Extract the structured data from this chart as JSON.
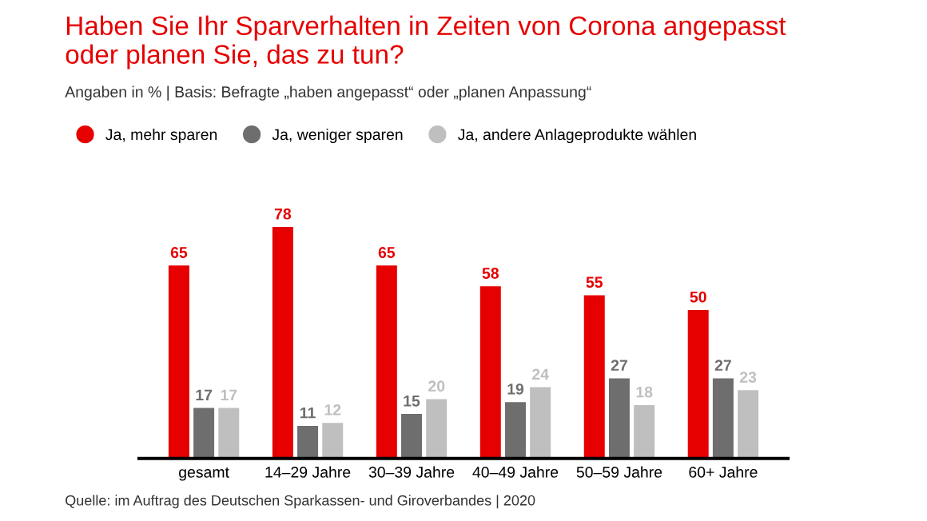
{
  "chart_data": {
    "type": "bar",
    "title": "Haben Sie Ihr Sparverhalten in Zeiten von Corona angepasst\noder planen Sie, das zu tun?",
    "subtitle": "Angaben in % | Basis: Befragte „haben angepasst“ oder „planen Anpassung“",
    "categories": [
      "gesamt",
      "14–29 Jahre",
      "30–39 Jahre",
      "40–49 Jahre",
      "50–59 Jahre",
      "60+ Jahre"
    ],
    "series": [
      {
        "name": "Ja, mehr sparen",
        "color": "#e60000",
        "values": [
          65,
          78,
          65,
          58,
          55,
          50
        ]
      },
      {
        "name": "Ja, weniger sparen",
        "color": "#6e6e6e",
        "values": [
          17,
          11,
          15,
          19,
          27,
          27
        ]
      },
      {
        "name": "Ja, andere Anlageprodukte wählen",
        "color": "#bfbfbf",
        "values": [
          17,
          12,
          20,
          24,
          18,
          23
        ]
      }
    ],
    "data_labels": true,
    "legend": "top left",
    "grid": false,
    "annotations": [
      "Quelle: im Auftrag des Deutschen Sparkassen- und Giroverbandes | 2020"
    ]
  }
}
